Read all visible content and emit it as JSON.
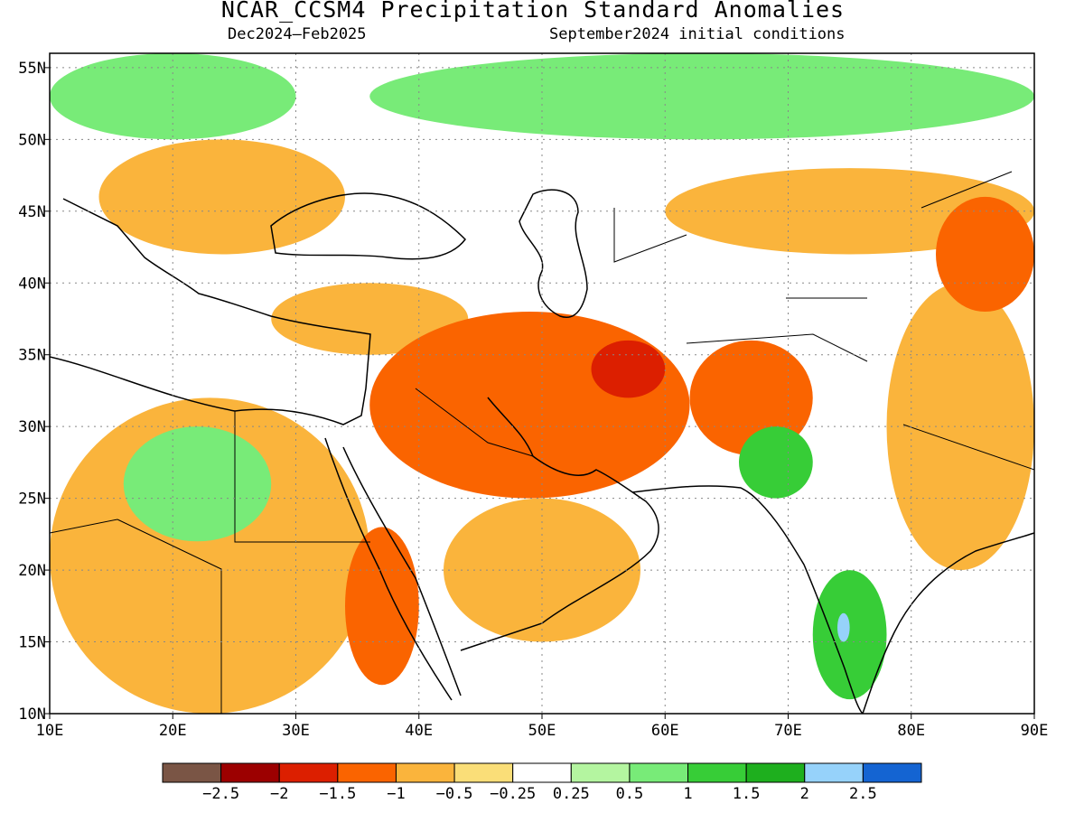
{
  "title": "NCAR_CCSM4 Precipitation Standard Anomalies",
  "subtitle_left": "Dec2024—Feb2025",
  "subtitle_right": "September2024 initial conditions",
  "map": {
    "lon_range": [
      10,
      90
    ],
    "lat_range": [
      10,
      56
    ],
    "lon_ticks": [
      "10E",
      "20E",
      "30E",
      "40E",
      "50E",
      "60E",
      "70E",
      "80E",
      "90E"
    ],
    "lat_ticks": [
      "55N",
      "50N",
      "45N",
      "40N",
      "35N",
      "30N",
      "25N",
      "20N",
      "15N",
      "10N"
    ],
    "grid": "dotted",
    "regions": [
      {
        "name": "n-europe-wet",
        "level": 1,
        "lon": [
          10,
          30
        ],
        "lat": [
          50,
          56
        ]
      },
      {
        "name": "c-europe-dry",
        "level": -1,
        "lon": [
          14,
          34
        ],
        "lat": [
          42,
          50
        ]
      },
      {
        "name": "anatolia-dry",
        "level": -1,
        "lon": [
          28,
          44
        ],
        "lat": [
          35,
          40
        ]
      },
      {
        "name": "russia-wet",
        "level": 1,
        "lon": [
          36,
          90
        ],
        "lat": [
          50,
          56
        ]
      },
      {
        "name": "kazakh-dry",
        "level": -1,
        "lon": [
          60,
          90
        ],
        "lat": [
          42,
          48
        ]
      },
      {
        "name": "middle-east-dry",
        "level": -1.5,
        "lon": [
          36,
          62
        ],
        "lat": [
          25,
          38
        ]
      },
      {
        "name": "iran-core-dry",
        "level": -2,
        "lon": [
          54,
          60
        ],
        "lat": [
          32,
          36
        ]
      },
      {
        "name": "afghan-dry",
        "level": -1.5,
        "lon": [
          62,
          72
        ],
        "lat": [
          28,
          36
        ]
      },
      {
        "name": "sahara-dry",
        "level": -1,
        "lon": [
          10,
          36
        ],
        "lat": [
          10,
          32
        ]
      },
      {
        "name": "saudi-dry",
        "level": -1,
        "lon": [
          42,
          58
        ],
        "lat": [
          15,
          25
        ]
      },
      {
        "name": "red-sea-dry",
        "level": -1.5,
        "lon": [
          34,
          40
        ],
        "lat": [
          12,
          23
        ]
      },
      {
        "name": "libya-wet",
        "level": 1,
        "lon": [
          16,
          28
        ],
        "lat": [
          22,
          30
        ]
      },
      {
        "name": "india-wet",
        "level": 1.5,
        "lon": [
          72,
          78
        ],
        "lat": [
          11,
          20
        ]
      },
      {
        "name": "india-core-wet",
        "level": 2,
        "lon": [
          74,
          75
        ],
        "lat": [
          15,
          17
        ]
      },
      {
        "name": "pakistan-wet",
        "level": 1.5,
        "lon": [
          66,
          72
        ],
        "lat": [
          25,
          30
        ]
      },
      {
        "name": "tibet-dry",
        "level": -1,
        "lon": [
          78,
          90
        ],
        "lat": [
          20,
          40
        ]
      },
      {
        "name": "mongolia-dry",
        "level": -1.5,
        "lon": [
          82,
          90
        ],
        "lat": [
          38,
          46
        ]
      }
    ]
  },
  "colorbar": {
    "colors": [
      "#7a5545",
      "#9c0000",
      "#dc1f00",
      "#fa6400",
      "#fab43c",
      "#fade78",
      "#ffffff",
      "#b4f5a0",
      "#78eb78",
      "#37cd37",
      "#1eaf1e",
      "#96d2fa",
      "#1464d2"
    ],
    "labels": [
      "−2.5",
      "−2",
      "−1.5",
      "−1",
      "−0.5",
      "−0.25",
      "0.25",
      "0.5",
      "1",
      "1.5",
      "2",
      "2.5"
    ]
  },
  "level_colors": {
    "-2.5": "#7a5545",
    "-2": "#dc1f00",
    "-1.5": "#fa6400",
    "-1": "#fab43c",
    "-0.5": "#fade78",
    "0.5": "#b4f5a0",
    "1": "#78eb78",
    "1.5": "#37cd37",
    "2": "#96d2fa",
    "2.5": "#1464d2"
  }
}
